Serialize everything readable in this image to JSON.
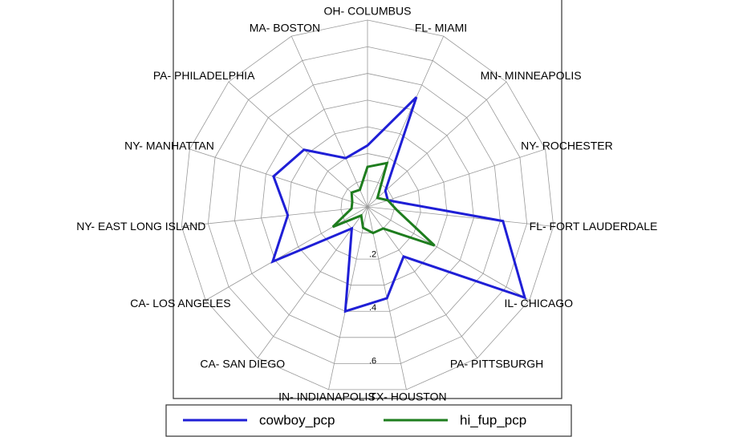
{
  "chart_data": {
    "type": "radar",
    "categories": [
      "OH- COLUMBUS",
      "FL- MIAMI",
      "MN- MINNEAPOLIS",
      "NY- ROCHESTER",
      "FL- FORT LAUDERDALE",
      "IL- CHICAGO",
      "PA- PITTSBURGH",
      "TX- HOUSTON",
      "IN- INDIANAPOLIS",
      "CA- SAN DIEGO",
      "CA- LOS ANGELES",
      "NY- EAST LONG ISLAND",
      "NY- MANHATTAN",
      "PA- PHILADELPHIA",
      "MA- BOSTON"
    ],
    "series": [
      {
        "name": "cowboy_pcp",
        "color": "#1f1fd6",
        "values": [
          0.23,
          0.45,
          0.09,
          0.08,
          0.51,
          0.68,
          0.23,
          0.35,
          0.4,
          0.1,
          0.41,
          0.3,
          0.37,
          0.32,
          0.2
        ]
      },
      {
        "name": "hi_fup_pcp",
        "color": "#1e7d1e",
        "values": [
          0.15,
          0.18,
          0.05,
          0.08,
          0.11,
          0.29,
          0.1,
          0.1,
          0.08,
          0.04,
          0.15,
          0.06,
          0.06,
          0.08,
          0.07
        ]
      }
    ],
    "rlim": [
      0,
      0.7
    ],
    "rgrid": [
      0.1,
      0.2,
      0.3,
      0.4,
      0.5,
      0.6,
      0.7
    ],
    "rticks": [
      {
        "value": 0.2,
        "label": ".2"
      },
      {
        "value": 0.4,
        "label": ".4"
      },
      {
        "value": 0.6,
        "label": ".6"
      }
    ],
    "legend": "bottom"
  }
}
